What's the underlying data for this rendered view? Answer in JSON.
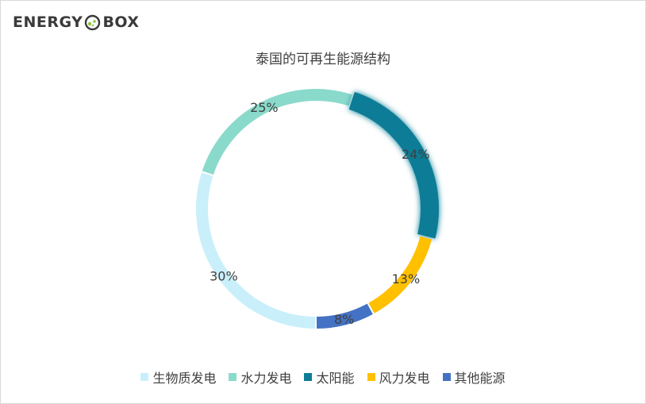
{
  "logo": {
    "left": "ENERGY",
    "right": "BOX"
  },
  "chart_data": {
    "type": "pie",
    "variant": "donut",
    "title": "泰国的可再生能源结构",
    "series": [
      {
        "name": "生物质发电",
        "value": 30,
        "label": "30%",
        "color": "#c9effa"
      },
      {
        "name": "水力发电",
        "value": 25,
        "label": "25%",
        "color": "#8adacc"
      },
      {
        "name": "太阳能",
        "value": 24,
        "label": "24%",
        "color": "#0e7c96"
      },
      {
        "name": "风力发电",
        "value": 13,
        "label": "13%",
        "color": "#ffc000"
      },
      {
        "name": "其他能源",
        "value": 8,
        "label": "8%",
        "color": "#4472c4"
      }
    ],
    "legend_position": "bottom"
  }
}
